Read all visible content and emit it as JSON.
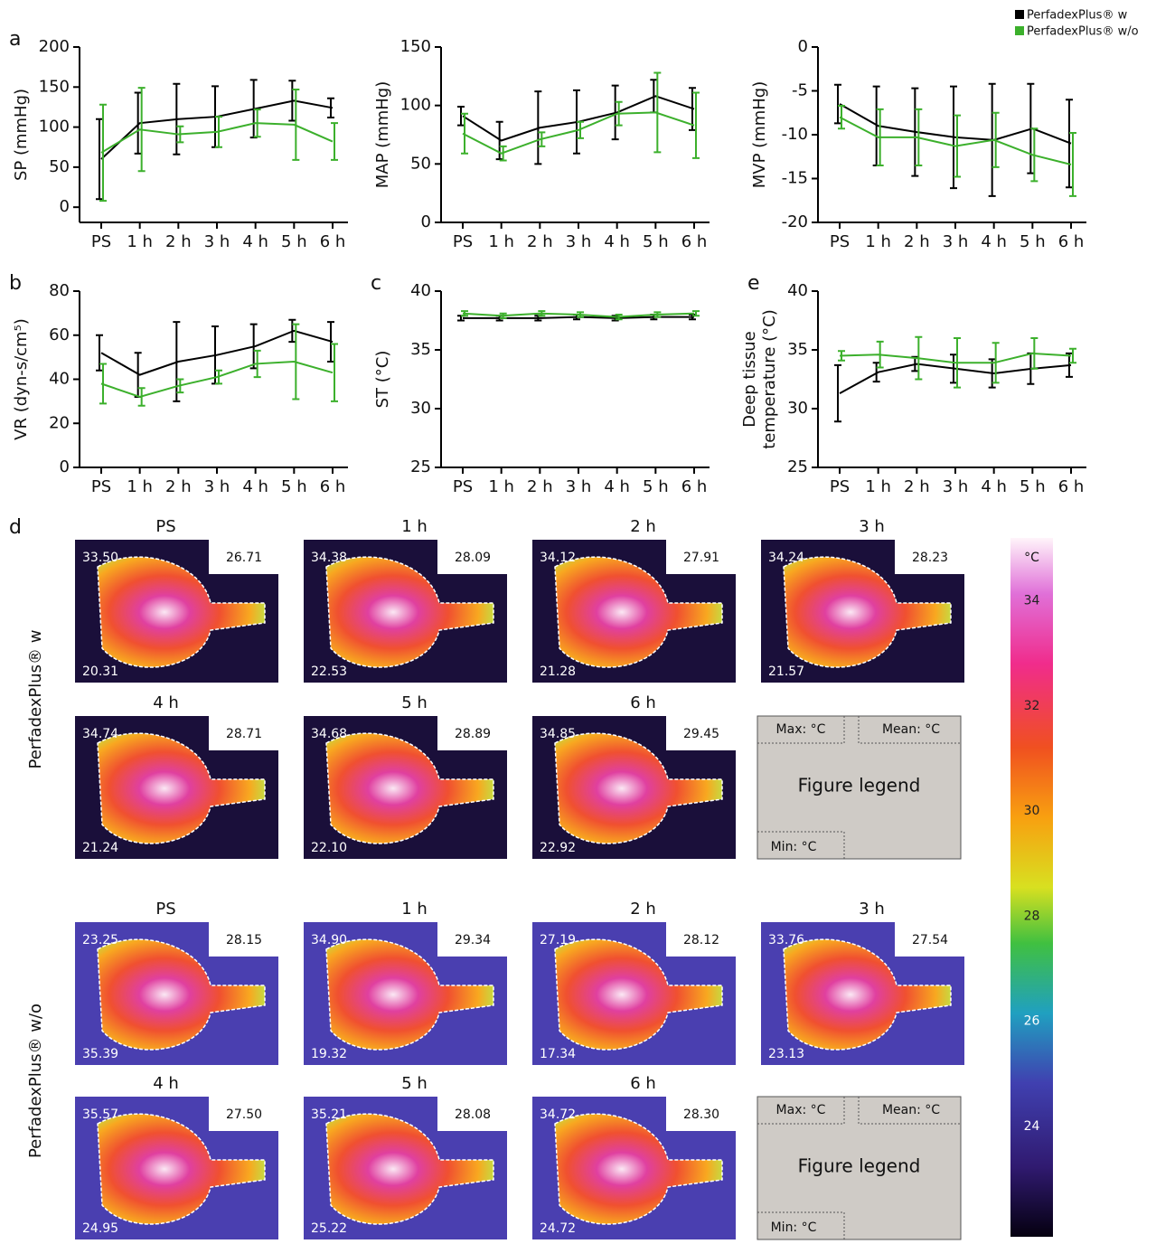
{
  "chart_data": [
    {
      "type": "line",
      "panel": "a",
      "y_label": [
        "SP (mmHg)"
      ],
      "categories": [
        "PS",
        "1 h",
        "2 h",
        "3 h",
        "4 h",
        "5 h",
        "6 h"
      ],
      "ylim": [
        -19,
        200
      ],
      "yticks": [
        0,
        50,
        100,
        150,
        200
      ],
      "series": [
        {
          "name": "PerfadexPlus® w",
          "color": "#000000",
          "values": [
            60,
            105,
            110,
            113,
            123,
            133,
            124
          ],
          "errors": [
            50,
            38,
            44,
            38,
            36,
            25,
            12
          ]
        },
        {
          "name": "PerfadexPlus® w/o",
          "color": "#3cb02c",
          "values": [
            68,
            97,
            91,
            94,
            105,
            103,
            82
          ],
          "errors": [
            60,
            52,
            10,
            19,
            17,
            44,
            23
          ]
        }
      ]
    },
    {
      "type": "line",
      "y_label": [
        "MAP (mmHg)"
      ],
      "categories": [
        "PS",
        "1 h",
        "2 h",
        "3 h",
        "4 h",
        "5 h",
        "6 h"
      ],
      "ylim": [
        0,
        150
      ],
      "yticks": [
        0,
        50,
        100,
        150
      ],
      "series": [
        {
          "name": "PerfadexPlus® w",
          "color": "#000000",
          "values": [
            91,
            70,
            81,
            86,
            94,
            108,
            97
          ],
          "errors": [
            8,
            16,
            31,
            27,
            23,
            14,
            18
          ]
        },
        {
          "name": "PerfadexPlus® w/o",
          "color": "#3cb02c",
          "values": [
            76,
            59,
            71,
            79,
            93,
            94,
            83
          ],
          "errors": [
            17,
            6,
            6,
            7,
            10,
            34,
            28
          ]
        }
      ]
    },
    {
      "type": "line",
      "y_label": [
        "MVP (mmHg)"
      ],
      "categories": [
        "PS",
        "1 h",
        "2 h",
        "3 h",
        "4 h",
        "5 h",
        "6 h"
      ],
      "ylim": [
        -20,
        0
      ],
      "yticks": [
        0,
        -5,
        -10,
        -15,
        -20
      ],
      "series": [
        {
          "name": "PerfadexPlus® w",
          "color": "#000000",
          "values": [
            -6.5,
            -9,
            -9.7,
            -10.3,
            -10.6,
            -9.3,
            -11
          ],
          "errors": [
            2.2,
            4.5,
            5,
            5.8,
            6.4,
            5.1,
            5
          ]
        },
        {
          "name": "PerfadexPlus® w/o",
          "color": "#3cb02c",
          "values": [
            -8,
            -10.3,
            -10.3,
            -11.3,
            -10.6,
            -12.3,
            -13.4
          ],
          "errors": [
            1.3,
            3.2,
            3.2,
            3.5,
            3.1,
            3,
            3.6
          ]
        }
      ]
    },
    {
      "type": "line",
      "panel": "b",
      "y_label": [
        "VR (dyn-s/cm⁵)"
      ],
      "categories": [
        "PS",
        "1 h",
        "2 h",
        "3 h",
        "4 h",
        "5 h",
        "6 h"
      ],
      "ylim": [
        0,
        80
      ],
      "yticks": [
        0,
        20,
        40,
        60,
        80
      ],
      "series": [
        {
          "name": "PerfadexPlus® w",
          "color": "#000000",
          "values": [
            52,
            42,
            48,
            51,
            55,
            62,
            57
          ],
          "errors": [
            8,
            10,
            18,
            13,
            10,
            5,
            9
          ]
        },
        {
          "name": "PerfadexPlus® w/o",
          "color": "#3cb02c",
          "values": [
            38,
            32,
            37,
            41,
            47,
            48,
            43
          ],
          "errors": [
            9,
            4,
            3,
            3,
            6,
            17,
            13
          ]
        }
      ]
    },
    {
      "type": "line",
      "panel": "c",
      "y_label": [
        "ST (°C)"
      ],
      "categories": [
        "PS",
        "1 h",
        "2 h",
        "3 h",
        "4 h",
        "5 h",
        "6 h"
      ],
      "ylim": [
        25,
        40
      ],
      "yticks": [
        25,
        30,
        35,
        40
      ],
      "series": [
        {
          "name": "PerfadexPlus® w",
          "color": "#000000",
          "values": [
            37.7,
            37.7,
            37.7,
            37.8,
            37.7,
            37.8,
            37.8
          ],
          "errors": [
            0.2,
            0.2,
            0.2,
            0.2,
            0.2,
            0.2,
            0.2
          ]
        },
        {
          "name": "PerfadexPlus® w/o",
          "color": "#3cb02c",
          "values": [
            38.1,
            37.9,
            38.1,
            38,
            37.8,
            38,
            38.1
          ],
          "errors": [
            0.2,
            0.2,
            0.2,
            0.2,
            0.2,
            0.2,
            0.2
          ]
        }
      ]
    },
    {
      "type": "line",
      "panel": "e",
      "y_label": [
        "Deep tissue",
        "temperature (°C)"
      ],
      "categories": [
        "PS",
        "1 h",
        "2 h",
        "3 h",
        "4 h",
        "5 h",
        "6 h"
      ],
      "ylim": [
        25,
        40
      ],
      "yticks": [
        25,
        30,
        35,
        40
      ],
      "series": [
        {
          "name": "PerfadexPlus® w",
          "color": "#000000",
          "values": [
            31.3,
            33.1,
            33.8,
            33.4,
            33,
            33.4,
            33.7
          ],
          "errors": [
            2.4,
            0.8,
            0.6,
            1.2,
            1.2,
            1.3,
            1
          ]
        },
        {
          "name": "PerfadexPlus® w/o",
          "color": "#3cb02c",
          "values": [
            34.5,
            34.6,
            34.3,
            33.9,
            33.9,
            34.7,
            34.5
          ],
          "errors": [
            0.4,
            1.1,
            1.8,
            2.1,
            1.7,
            1.3,
            0.6
          ]
        }
      ]
    }
  ],
  "panel_d": {
    "panel": "d",
    "groups": [
      {
        "label": "PerfadexPlus® w",
        "images": [
          {
            "time": "PS",
            "top": "33.50",
            "mean": "26.71",
            "bottom": "20.31"
          },
          {
            "time": "1 h",
            "top": "34.38",
            "mean": "28.09",
            "bottom": "22.53"
          },
          {
            "time": "2 h",
            "top": "34.12",
            "mean": "27.91",
            "bottom": "21.28"
          },
          {
            "time": "3 h",
            "top": "34.24",
            "mean": "28.23",
            "bottom": "21.57"
          },
          {
            "time": "4 h",
            "top": "34.74",
            "mean": "28.71",
            "bottom": "21.24"
          },
          {
            "time": "5 h",
            "top": "34.68",
            "mean": "28.89",
            "bottom": "22.10"
          },
          {
            "time": "6 h",
            "top": "34.85",
            "mean": "29.45",
            "bottom": "22.92"
          }
        ],
        "legend_box": {
          "max": "Max: °C",
          "mean": "Mean: °C",
          "title": "Figure legend",
          "min": "Min: °C"
        }
      },
      {
        "label": "PerfadexPlus® w/o",
        "images": [
          {
            "time": "PS",
            "top": "23.25",
            "mean": "28.15",
            "bottom": "35.39"
          },
          {
            "time": "1 h",
            "top": "34.90",
            "mean": "29.34",
            "bottom": "19.32"
          },
          {
            "time": "2 h",
            "top": "27.19",
            "mean": "28.12",
            "bottom": "17.34"
          },
          {
            "time": "3 h",
            "top": "33.76",
            "mean": "27.54",
            "bottom": "23.13"
          },
          {
            "time": "4 h",
            "top": "35.57",
            "mean": "27.50",
            "bottom": "24.95"
          },
          {
            "time": "5 h",
            "top": "35.21",
            "mean": "28.08",
            "bottom": "25.22"
          },
          {
            "time": "6 h",
            "top": "34.72",
            "mean": "28.30",
            "bottom": "24.72"
          }
        ],
        "legend_box": {
          "max": "Max: °C",
          "mean": "Mean: °C",
          "title": "Figure legend",
          "min": "Min: °C"
        }
      }
    ],
    "colorbar": {
      "unit": "°C",
      "lim": [
        21.9,
        35.2
      ],
      "ticks": [
        34,
        32,
        30,
        28,
        26,
        24
      ]
    }
  }
}
